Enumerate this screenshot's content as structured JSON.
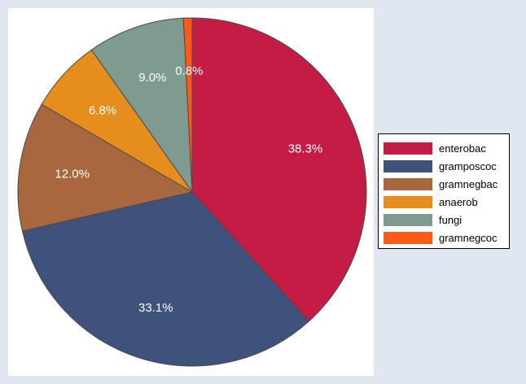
{
  "chart_data": {
    "type": "pie",
    "categories": [
      "enterobac",
      "gramposcoc",
      "gramnegbac",
      "anaerob",
      "fungi",
      "gramnegcoc"
    ],
    "values": [
      38.3,
      33.1,
      12.0,
      6.8,
      9.0,
      0.8
    ],
    "value_labels": [
      "38.3%",
      "33.1%",
      "12.0%",
      "6.8%",
      "9.0%",
      "0.8%"
    ],
    "colors": [
      "#c41c45",
      "#3e527c",
      "#a8673f",
      "#e58e1e",
      "#7f9b8f",
      "#fb5a18"
    ],
    "slice_order_clockwise_from_top": [
      "enterobac",
      "gramposcoc",
      "gramnegbac",
      "anaerob",
      "fungi",
      "gramnegcoc"
    ],
    "legend_position": "right",
    "title": "",
    "grid": false
  },
  "legend": {
    "items": [
      {
        "label": "enterobac",
        "color": "#c41c45"
      },
      {
        "label": "gramposcoc",
        "color": "#3e527c"
      },
      {
        "label": "gramnegbac",
        "color": "#a8673f"
      },
      {
        "label": "anaerob",
        "color": "#e58e1e"
      },
      {
        "label": "fungi",
        "color": "#7f9b8f"
      },
      {
        "label": "gramnegcoc",
        "color": "#fb5a18"
      }
    ]
  }
}
